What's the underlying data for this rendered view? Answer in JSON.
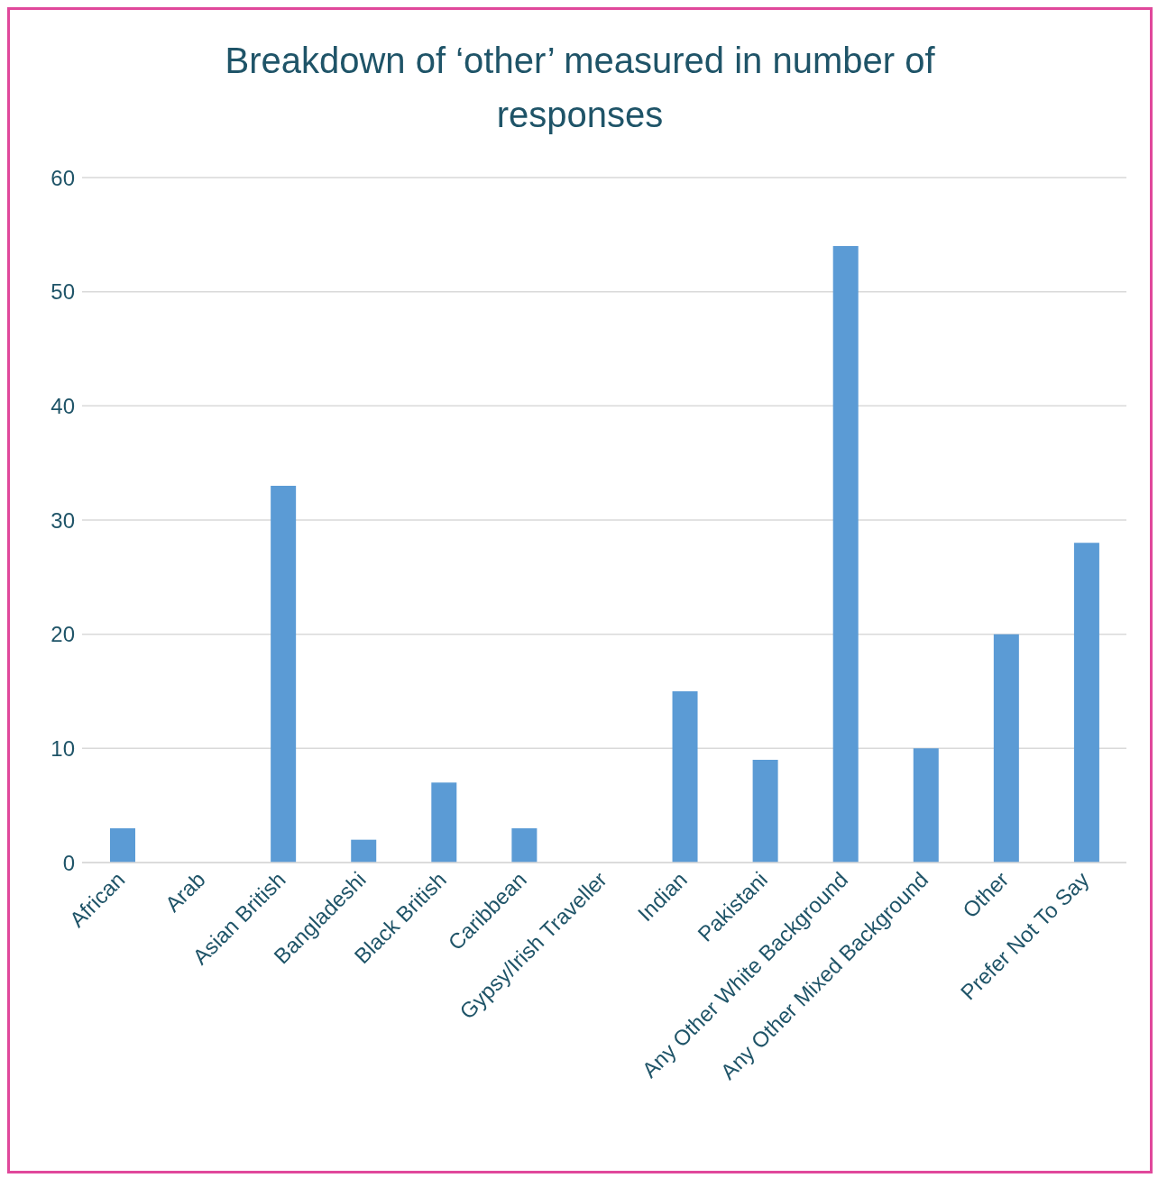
{
  "chart_data": {
    "type": "bar",
    "title": "Breakdown of ‘other’ measured in number of responses",
    "categories": [
      "African",
      "Arab",
      "Asian British",
      "Bangladeshi",
      "Black British",
      "Caribbean",
      "Gypsy/Irish Traveller",
      "Indian",
      "Pakistani",
      "Any Other White Background",
      "Any Other Mixed Background",
      "Other",
      "Prefer Not To Say"
    ],
    "values": [
      3,
      0,
      33,
      2,
      7,
      3,
      0,
      15,
      9,
      54,
      10,
      20,
      28
    ],
    "color": "#5b9bd5",
    "ylim": [
      0,
      60
    ],
    "yticks": [
      0,
      10,
      20,
      30,
      40,
      50,
      60
    ],
    "grid": "y"
  }
}
